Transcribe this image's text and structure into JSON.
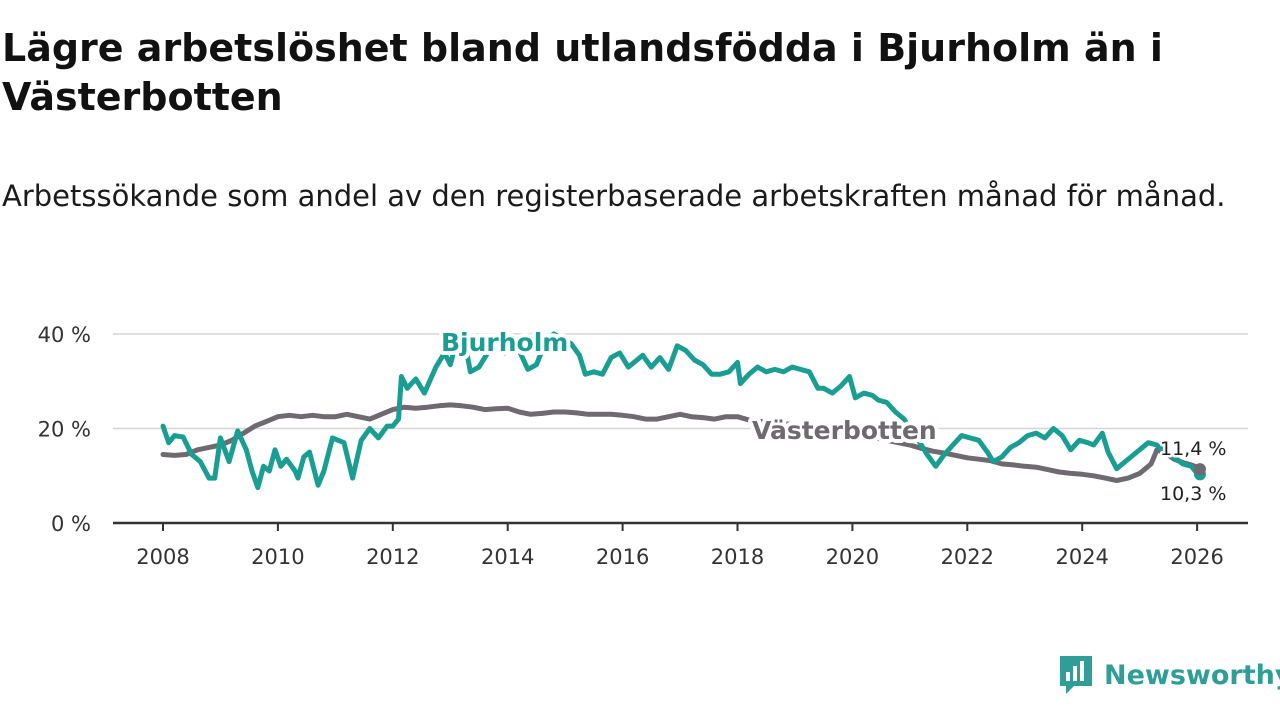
{
  "title": "Lägre arbetslöshet bland utlandsfödda i Bjurholm än i Västerbotten",
  "subtitle": "Arbetssökande som andel av den registerbaserade arbetskraften månad för månad.",
  "logo": {
    "text": "Newsworthy",
    "icon": "newsworthy-logo-icon",
    "color": "#2f9e97"
  },
  "chart_data": {
    "type": "line",
    "title": "Lägre arbetslöshet bland utlandsfödda i Bjurholm än i Västerbotten",
    "xlabel": "",
    "ylabel": "",
    "xlim": [
      2007.2,
      2026.9
    ],
    "ylim": [
      0,
      40
    ],
    "x_ticks": [
      2008,
      2010,
      2012,
      2014,
      2016,
      2018,
      2020,
      2022,
      2024,
      2026
    ],
    "x_tick_labels": [
      "2008",
      "2010",
      "2012",
      "2014",
      "2016",
      "2018",
      "2020",
      "2022",
      "2024",
      "2026"
    ],
    "y_ticks": [
      0,
      20,
      40
    ],
    "y_tick_labels": [
      "0 %",
      "20 %",
      "40 %"
    ],
    "grid": true,
    "series": [
      {
        "name": "Bjurholm",
        "color": "#1a9e93",
        "end_value_label": "10,3 %",
        "points": [
          [
            2008.0,
            20.5
          ],
          [
            2008.1,
            17.0
          ],
          [
            2008.2,
            18.5
          ],
          [
            2008.35,
            18.2
          ],
          [
            2008.5,
            14.5
          ],
          [
            2008.65,
            13.0
          ],
          [
            2008.8,
            9.5
          ],
          [
            2008.9,
            9.5
          ],
          [
            2009.0,
            18.0
          ],
          [
            2009.15,
            13.0
          ],
          [
            2009.3,
            19.5
          ],
          [
            2009.45,
            15.5
          ],
          [
            2009.55,
            11.0
          ],
          [
            2009.65,
            7.5
          ],
          [
            2009.75,
            12.0
          ],
          [
            2009.85,
            11.0
          ],
          [
            2009.95,
            15.5
          ],
          [
            2010.05,
            12.0
          ],
          [
            2010.15,
            13.5
          ],
          [
            2010.3,
            11.0
          ],
          [
            2010.35,
            9.5
          ],
          [
            2010.45,
            14.0
          ],
          [
            2010.55,
            15.0
          ],
          [
            2010.7,
            8.0
          ],
          [
            2010.8,
            11.0
          ],
          [
            2010.95,
            18.0
          ],
          [
            2011.05,
            17.5
          ],
          [
            2011.15,
            17.0
          ],
          [
            2011.3,
            9.5
          ],
          [
            2011.45,
            17.5
          ],
          [
            2011.6,
            20.0
          ],
          [
            2011.75,
            18.0
          ],
          [
            2011.9,
            20.5
          ],
          [
            2012.0,
            20.5
          ],
          [
            2012.1,
            22.0
          ],
          [
            2012.15,
            31.0
          ],
          [
            2012.25,
            28.5
          ],
          [
            2012.4,
            30.5
          ],
          [
            2012.55,
            27.5
          ],
          [
            2012.75,
            33.0
          ],
          [
            2012.9,
            36.0
          ],
          [
            2013.0,
            33.5
          ],
          [
            2013.1,
            38.0
          ],
          [
            2013.25,
            38.5
          ],
          [
            2013.35,
            32.0
          ],
          [
            2013.5,
            33.0
          ],
          [
            2013.65,
            36.0
          ],
          [
            2013.8,
            38.0
          ],
          [
            2013.95,
            36.0
          ],
          [
            2014.05,
            38.5
          ],
          [
            2014.2,
            36.5
          ],
          [
            2014.35,
            32.5
          ],
          [
            2014.5,
            33.5
          ],
          [
            2014.65,
            38.0
          ],
          [
            2014.8,
            40.0
          ],
          [
            2014.95,
            39.0
          ],
          [
            2015.1,
            38.0
          ],
          [
            2015.25,
            35.5
          ],
          [
            2015.35,
            31.5
          ],
          [
            2015.5,
            32.0
          ],
          [
            2015.65,
            31.5
          ],
          [
            2015.8,
            35.0
          ],
          [
            2015.95,
            36.0
          ],
          [
            2016.1,
            33.0
          ],
          [
            2016.25,
            34.5
          ],
          [
            2016.35,
            35.5
          ],
          [
            2016.5,
            33.0
          ],
          [
            2016.65,
            35.0
          ],
          [
            2016.8,
            32.5
          ],
          [
            2016.95,
            37.5
          ],
          [
            2017.1,
            36.5
          ],
          [
            2017.25,
            34.5
          ],
          [
            2017.4,
            33.5
          ],
          [
            2017.55,
            31.5
          ],
          [
            2017.7,
            31.5
          ],
          [
            2017.85,
            32.0
          ],
          [
            2018.0,
            34.0
          ],
          [
            2018.05,
            29.5
          ],
          [
            2018.2,
            31.5
          ],
          [
            2018.35,
            33.0
          ],
          [
            2018.5,
            32.0
          ],
          [
            2018.65,
            32.5
          ],
          [
            2018.8,
            32.0
          ],
          [
            2018.95,
            33.0
          ],
          [
            2019.1,
            32.5
          ],
          [
            2019.25,
            32.0
          ],
          [
            2019.4,
            28.5
          ],
          [
            2019.5,
            28.5
          ],
          [
            2019.65,
            27.5
          ],
          [
            2019.8,
            29.0
          ],
          [
            2019.95,
            31.0
          ],
          [
            2020.05,
            26.5
          ],
          [
            2020.2,
            27.5
          ],
          [
            2020.35,
            27.0
          ],
          [
            2020.45,
            26.0
          ],
          [
            2020.6,
            25.5
          ],
          [
            2020.75,
            23.5
          ],
          [
            2020.9,
            22.0
          ],
          [
            2021.0,
            20.0
          ],
          [
            2021.15,
            17.5
          ],
          [
            2021.3,
            14.5
          ],
          [
            2021.45,
            12.0
          ],
          [
            2021.6,
            14.5
          ],
          [
            2021.75,
            16.5
          ],
          [
            2021.9,
            18.5
          ],
          [
            2022.05,
            18.0
          ],
          [
            2022.2,
            17.5
          ],
          [
            2022.35,
            15.0
          ],
          [
            2022.45,
            13.0
          ],
          [
            2022.6,
            14.0
          ],
          [
            2022.75,
            16.0
          ],
          [
            2022.9,
            17.0
          ],
          [
            2023.05,
            18.5
          ],
          [
            2023.2,
            19.0
          ],
          [
            2023.35,
            18.0
          ],
          [
            2023.5,
            20.0
          ],
          [
            2023.65,
            18.5
          ],
          [
            2023.8,
            15.5
          ],
          [
            2023.95,
            17.5
          ],
          [
            2024.1,
            17.0
          ],
          [
            2024.2,
            16.5
          ],
          [
            2024.35,
            19.0
          ],
          [
            2024.45,
            15.0
          ],
          [
            2024.6,
            11.5
          ],
          [
            2024.75,
            13.0
          ],
          [
            2024.9,
            14.5
          ],
          [
            2025.05,
            16.0
          ],
          [
            2025.15,
            17.0
          ],
          [
            2025.3,
            16.5
          ],
          [
            2025.45,
            15.0
          ],
          [
            2025.6,
            14.0
          ],
          [
            2025.75,
            12.5
          ],
          [
            2025.9,
            12.0
          ],
          [
            2026.0,
            10.5
          ],
          [
            2026.05,
            10.3
          ]
        ]
      },
      {
        "name": "Västerbotten",
        "color": "#6e6a70",
        "end_value_label": "11,4 %",
        "points": [
          [
            2008.0,
            14.5
          ],
          [
            2008.2,
            14.3
          ],
          [
            2008.4,
            14.5
          ],
          [
            2008.6,
            15.5
          ],
          [
            2008.8,
            16.0
          ],
          [
            2009.0,
            16.5
          ],
          [
            2009.2,
            17.5
          ],
          [
            2009.4,
            19.0
          ],
          [
            2009.6,
            20.5
          ],
          [
            2009.8,
            21.5
          ],
          [
            2010.0,
            22.5
          ],
          [
            2010.2,
            22.8
          ],
          [
            2010.4,
            22.5
          ],
          [
            2010.6,
            22.8
          ],
          [
            2010.8,
            22.5
          ],
          [
            2011.0,
            22.5
          ],
          [
            2011.2,
            23.0
          ],
          [
            2011.4,
            22.5
          ],
          [
            2011.6,
            22.0
          ],
          [
            2011.8,
            23.0
          ],
          [
            2012.0,
            24.0
          ],
          [
            2012.2,
            24.5
          ],
          [
            2012.4,
            24.3
          ],
          [
            2012.6,
            24.5
          ],
          [
            2012.8,
            24.8
          ],
          [
            2013.0,
            25.0
          ],
          [
            2013.2,
            24.8
          ],
          [
            2013.4,
            24.5
          ],
          [
            2013.6,
            24.0
          ],
          [
            2013.8,
            24.2
          ],
          [
            2014.0,
            24.3
          ],
          [
            2014.2,
            23.5
          ],
          [
            2014.4,
            23.0
          ],
          [
            2014.6,
            23.2
          ],
          [
            2014.8,
            23.5
          ],
          [
            2015.0,
            23.5
          ],
          [
            2015.2,
            23.3
          ],
          [
            2015.4,
            23.0
          ],
          [
            2015.6,
            23.0
          ],
          [
            2015.8,
            23.0
          ],
          [
            2016.0,
            22.8
          ],
          [
            2016.2,
            22.5
          ],
          [
            2016.4,
            22.0
          ],
          [
            2016.6,
            22.0
          ],
          [
            2016.8,
            22.5
          ],
          [
            2017.0,
            23.0
          ],
          [
            2017.2,
            22.5
          ],
          [
            2017.4,
            22.3
          ],
          [
            2017.6,
            22.0
          ],
          [
            2017.8,
            22.5
          ],
          [
            2018.0,
            22.5
          ],
          [
            2018.2,
            21.8
          ],
          [
            2018.4,
            21.5
          ],
          [
            2018.6,
            21.3
          ],
          [
            2018.8,
            21.0
          ],
          [
            2019.0,
            20.8
          ],
          [
            2019.2,
            20.5
          ],
          [
            2019.4,
            20.3
          ],
          [
            2019.6,
            20.0
          ],
          [
            2019.8,
            19.5
          ],
          [
            2020.0,
            19.0
          ],
          [
            2020.2,
            18.5
          ],
          [
            2020.4,
            18.0
          ],
          [
            2020.6,
            17.5
          ],
          [
            2020.8,
            17.0
          ],
          [
            2021.0,
            16.5
          ],
          [
            2021.2,
            15.8
          ],
          [
            2021.4,
            15.2
          ],
          [
            2021.6,
            14.8
          ],
          [
            2021.8,
            14.3
          ],
          [
            2022.0,
            13.8
          ],
          [
            2022.2,
            13.5
          ],
          [
            2022.4,
            13.2
          ],
          [
            2022.6,
            12.5
          ],
          [
            2022.8,
            12.3
          ],
          [
            2023.0,
            12.0
          ],
          [
            2023.2,
            11.8
          ],
          [
            2023.4,
            11.3
          ],
          [
            2023.6,
            10.8
          ],
          [
            2023.8,
            10.5
          ],
          [
            2024.0,
            10.3
          ],
          [
            2024.2,
            10.0
          ],
          [
            2024.4,
            9.5
          ],
          [
            2024.6,
            9.0
          ],
          [
            2024.8,
            9.5
          ],
          [
            2025.0,
            10.5
          ],
          [
            2025.1,
            11.5
          ],
          [
            2025.2,
            12.5
          ],
          [
            2025.3,
            15.5
          ],
          [
            2025.45,
            14.8
          ],
          [
            2025.6,
            13.5
          ],
          [
            2025.75,
            12.8
          ],
          [
            2025.9,
            12.3
          ],
          [
            2026.0,
            11.8
          ],
          [
            2026.05,
            11.4
          ]
        ]
      }
    ]
  }
}
